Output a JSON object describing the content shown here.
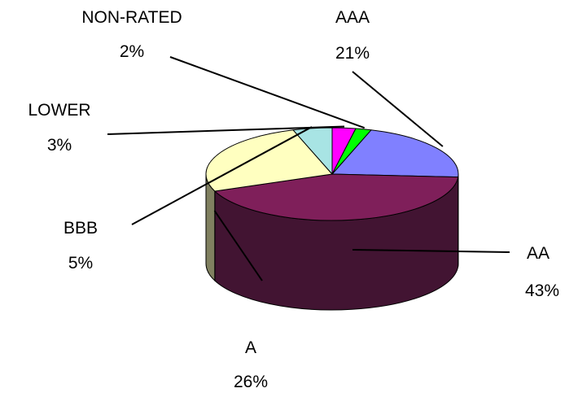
{
  "chart_data": {
    "type": "pie",
    "style": "3d-exploded-perspective",
    "title": "",
    "legend": "none",
    "slices": [
      {
        "label": "AAA",
        "value": 21,
        "value_label": "21%",
        "color": "#8080ff",
        "side_color": "#4a4aa0"
      },
      {
        "label": "AA",
        "value": 43,
        "value_label": "43%",
        "color": "#7f1f5a",
        "side_color": "#421432"
      },
      {
        "label": "A",
        "value": 26,
        "value_label": "26%",
        "color": "#ffffc0",
        "side_color": "#808060"
      },
      {
        "label": "BBB",
        "value": 5,
        "value_label": "5%",
        "color": "#a8e4e4",
        "side_color": "#6a9a9a"
      },
      {
        "label": "LOWER",
        "value": 3,
        "value_label": "3%",
        "color": "#ff00ff",
        "side_color": "#8a008a"
      },
      {
        "label": "NON-RATED",
        "value": 2,
        "value_label": "2%",
        "color": "#00ff00",
        "side_color": "#009000"
      }
    ]
  }
}
